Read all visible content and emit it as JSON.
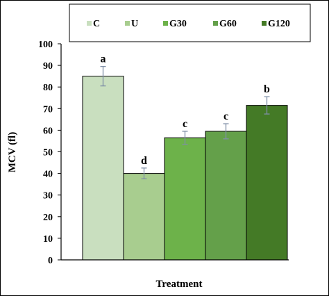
{
  "chart_data": {
    "type": "bar",
    "categories": [
      "C",
      "U",
      "G30",
      "G60",
      "G120"
    ],
    "values": [
      85,
      40,
      56.5,
      59.5,
      71.5
    ],
    "errors": [
      4.5,
      2.5,
      3,
      3.5,
      4
    ],
    "significance_labels": [
      "a",
      "d",
      "c",
      "c",
      "b"
    ],
    "xlabel": "Treatment",
    "ylabel": "MCV (fl)",
    "ylim": [
      0,
      100
    ],
    "yticks": [
      0,
      10,
      20,
      30,
      40,
      50,
      60,
      70,
      80,
      90,
      100
    ],
    "legend_placement": "top",
    "grid": false,
    "colors": {
      "C": "#c9dfbf",
      "U": "#a8cd8f",
      "G30": "#6db24a",
      "G60": "#64a04a",
      "G120": "#447a26",
      "error_bar": "#7f8fa6"
    }
  }
}
